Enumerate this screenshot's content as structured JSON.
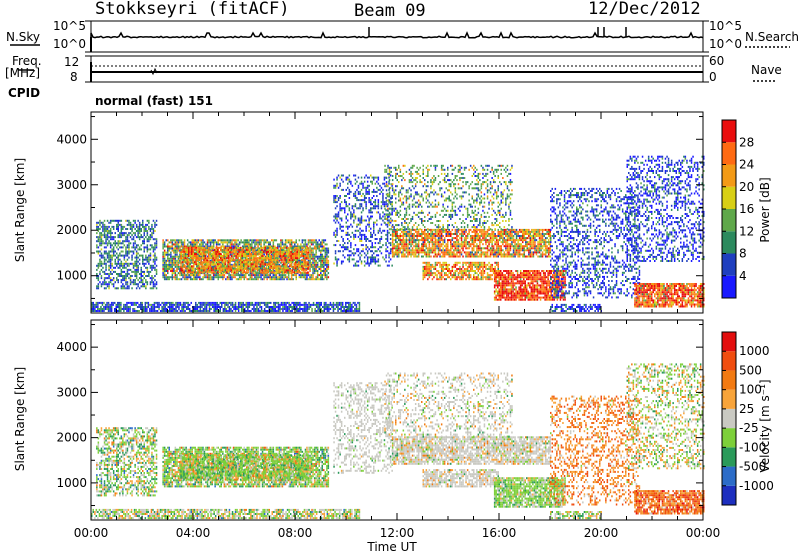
{
  "header": {
    "station": "Stokkseyri (fitACF)",
    "beam": "Beam 09",
    "date": "12/Dec/2012"
  },
  "top_panels": {
    "nsky_label": "N.Sky",
    "nsky_ticks": [
      "10^5",
      "10^0"
    ],
    "nsearch_label": "N.Search",
    "nsearch_ticks": [
      "10^5",
      "10^0"
    ],
    "freq_label": "Freq.",
    "freq_unit": "[MHz]",
    "freq_ticks": [
      "12",
      "8"
    ],
    "nave_label": "Nave",
    "nave_ticks": [
      "60",
      "0"
    ],
    "cpid_label": "CPID",
    "cpid_value": "normal (fast) 151"
  },
  "chart_data": [
    {
      "type": "heatmap",
      "name": "power",
      "xlabel": "",
      "ylabel": "Slant Range [km]",
      "yticks": [
        1000,
        2000,
        3000,
        4000
      ],
      "ylim": [
        180,
        4600
      ],
      "xlim": [
        0,
        24
      ],
      "colorbar": {
        "label": "Power [dB]",
        "ticks": [
          "4",
          "8",
          "12",
          "16",
          "20",
          "24",
          "28"
        ],
        "colors": [
          "#1919ff",
          "#1f3fbf",
          "#2c8a5e",
          "#5fa84a",
          "#d8cf15",
          "#f39a16",
          "#ff6a12",
          "#e90d0d"
        ]
      }
    },
    {
      "type": "heatmap",
      "name": "velocity",
      "xlabel": "Time UT",
      "ylabel": "Slant Range [km]",
      "yticks": [
        1000,
        2000,
        3000,
        4000
      ],
      "ylim": [
        180,
        4600
      ],
      "xlim": [
        0,
        24
      ],
      "xticks": [
        "00:00",
        "04:00",
        "08:00",
        "12:00",
        "16:00",
        "20:00",
        "00:00"
      ],
      "colorbar": {
        "label": "Velocity [m s⁻¹]",
        "ticks": [
          "1000",
          "500",
          "100",
          "25",
          "-25",
          "-100",
          "-500",
          "-1000"
        ],
        "colors": [
          "#1d2fbf",
          "#2c6cc8",
          "#2a9a5a",
          "#7dd03a",
          "#c9c9c2",
          "#f8a43a",
          "#f27a12",
          "#f04d0f",
          "#e30e0e"
        ]
      }
    }
  ]
}
